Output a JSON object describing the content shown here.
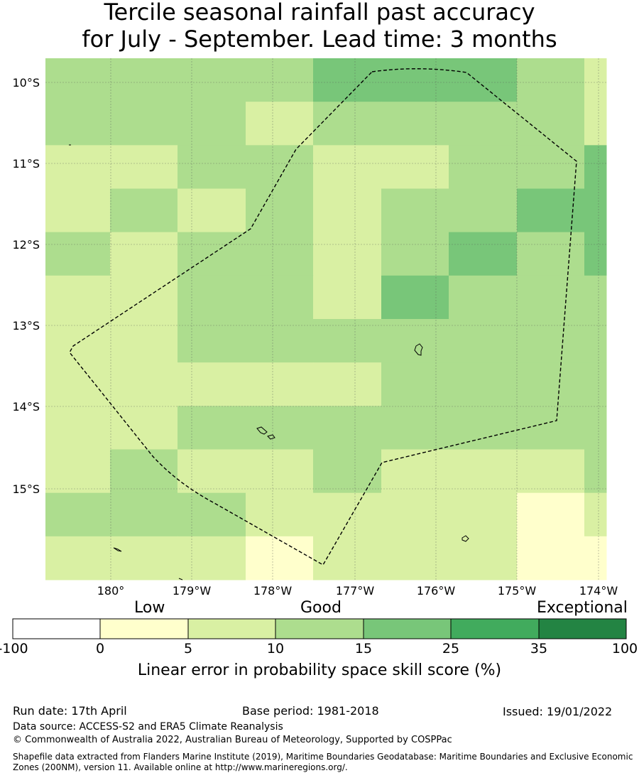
{
  "title": {
    "line1": "Tercile seasonal rainfall past accuracy",
    "line2": "for July - September. Lead time: 3 months"
  },
  "map": {
    "lat_labels": [
      "10°S",
      "11°S",
      "12°S",
      "13°S",
      "14°S",
      "15°S"
    ],
    "lon_labels": [
      "180°",
      "179°W",
      "178°W",
      "177°W",
      "176°W",
      "175°W",
      "174°W"
    ],
    "grid_rows": [
      [
        3,
        3,
        3,
        3,
        4,
        4,
        4,
        3,
        2
      ],
      [
        3,
        3,
        3,
        2,
        3,
        3,
        3,
        3,
        2
      ],
      [
        2,
        2,
        3,
        3,
        2,
        2,
        3,
        3,
        4
      ],
      [
        2,
        3,
        2,
        3,
        2,
        3,
        3,
        4,
        4
      ],
      [
        3,
        2,
        3,
        3,
        2,
        3,
        4,
        3,
        4
      ],
      [
        2,
        2,
        3,
        3,
        2,
        4,
        3,
        3,
        3
      ],
      [
        2,
        2,
        3,
        3,
        3,
        3,
        3,
        3,
        3
      ],
      [
        2,
        2,
        2,
        2,
        2,
        3,
        3,
        3,
        3
      ],
      [
        2,
        2,
        3,
        3,
        3,
        3,
        3,
        3,
        3
      ],
      [
        2,
        3,
        2,
        2,
        3,
        2,
        2,
        2,
        3
      ],
      [
        3,
        3,
        3,
        2,
        2,
        2,
        2,
        1,
        2
      ],
      [
        2,
        2,
        2,
        1,
        2,
        2,
        2,
        1,
        1
      ]
    ]
  },
  "colorbar": {
    "category_labels": [
      "Low",
      "Good",
      "Exceptional"
    ],
    "ticks": [
      "-100",
      "0",
      "5",
      "10",
      "15",
      "25",
      "35",
      "100"
    ],
    "colors": [
      "#ffffff",
      "#ffffcc",
      "#d9f0a3",
      "#addd8e",
      "#78c679",
      "#41ab5d",
      "#238443"
    ],
    "title": "Linear error in probability space skill score (%)"
  },
  "footer": {
    "run_date": "Run date: 17th April",
    "base_period": "Base period: 1981-2018",
    "issued": "Issued: 19/01/2022",
    "data_source": "Data source: ACCESS-S2 and ERA5 Climate Reanalysis",
    "copyright": "© Commonwealth of Australia 2022, Australian Bureau of Meteorology, Supported by COSPPac",
    "shapefile_line1": "Shapefile data extracted from Flanders Marine Institute (2019), Maritime Boundaries Geodatabase: Maritime Boundaries and Exclusive Economic",
    "shapefile_line2": "Zones (200NM), version 11. Available online at http://www.marineregions.org/."
  }
}
